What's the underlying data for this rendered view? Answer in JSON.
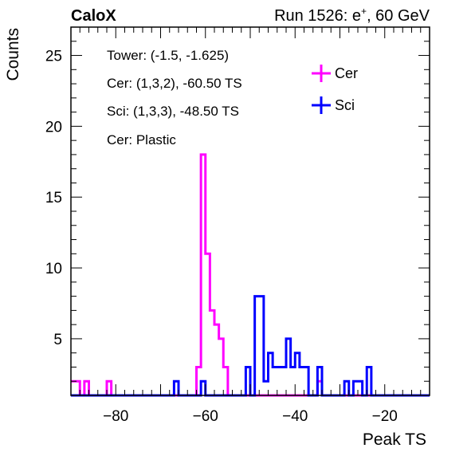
{
  "header": {
    "left_title": "CaloX",
    "run_prefix": "Run 1526: e",
    "run_sup": "+",
    "run_suffix": ", 60 GeV"
  },
  "info": [
    "Tower: (-1.5, -1.625)",
    "Cer: (1,3,2), -60.50 TS",
    "Sci: (1,3,3), -48.50 TS",
    "Cer: Plastic"
  ],
  "colors": {
    "cer": "#ff00ff",
    "sci": "#0000ff",
    "frame": "#000000"
  },
  "chart_data": {
    "type": "histogram",
    "xlabel": "Peak TS",
    "ylabel": "Counts",
    "xlim": [
      -90,
      -10
    ],
    "ylim": [
      1,
      27
    ],
    "bin_width": 1,
    "x_ticks": [
      -80,
      -60,
      -40,
      -20
    ],
    "y_ticks": [
      5,
      10,
      15,
      20,
      25
    ],
    "legend": {
      "position": "top-right",
      "entries": [
        "Cer",
        "Sci"
      ]
    },
    "series": [
      {
        "name": "Cer",
        "color": "#ff00ff",
        "bins": [
          {
            "x": -89.5,
            "y": 2
          },
          {
            "x": -88.5,
            "y": 2
          },
          {
            "x": -87.5,
            "y": 1
          },
          {
            "x": -86.5,
            "y": 2
          },
          {
            "x": -81.5,
            "y": 2
          },
          {
            "x": -61.5,
            "y": 3
          },
          {
            "x": -60.5,
            "y": 18
          },
          {
            "x": -59.5,
            "y": 11
          },
          {
            "x": -58.5,
            "y": 7
          },
          {
            "x": -57.5,
            "y": 6
          },
          {
            "x": -56.5,
            "y": 5
          },
          {
            "x": -55.5,
            "y": 3
          },
          {
            "x": -34.5,
            "y": 2
          }
        ]
      },
      {
        "name": "Sci",
        "color": "#0000ff",
        "bins": [
          {
            "x": -66.5,
            "y": 2
          },
          {
            "x": -60.5,
            "y": 2
          },
          {
            "x": -50.5,
            "y": 3
          },
          {
            "x": -48.5,
            "y": 8
          },
          {
            "x": -47.5,
            "y": 8
          },
          {
            "x": -46.5,
            "y": 2
          },
          {
            "x": -45.5,
            "y": 4
          },
          {
            "x": -44.5,
            "y": 3
          },
          {
            "x": -43.5,
            "y": 3
          },
          {
            "x": -42.5,
            "y": 3
          },
          {
            "x": -41.5,
            "y": 5
          },
          {
            "x": -40.5,
            "y": 3
          },
          {
            "x": -39.5,
            "y": 4
          },
          {
            "x": -38.5,
            "y": 3
          },
          {
            "x": -37.5,
            "y": 3
          },
          {
            "x": -34.5,
            "y": 3
          },
          {
            "x": -28.5,
            "y": 2
          },
          {
            "x": -26.5,
            "y": 2
          },
          {
            "x": -25.5,
            "y": 2
          },
          {
            "x": -24.5,
            "y": 1
          },
          {
            "x": -23.5,
            "y": 3
          }
        ]
      }
    ]
  }
}
